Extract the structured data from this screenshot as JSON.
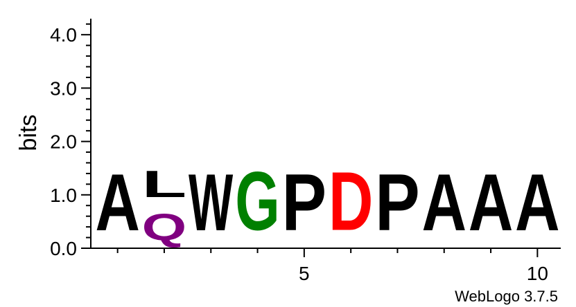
{
  "chart_data": {
    "type": "sequence-logo",
    "ylabel": "bits",
    "ylim": [
      0,
      4.3
    ],
    "y_ticks": [
      "0.0",
      "1.0",
      "2.0",
      "3.0",
      "4.0"
    ],
    "x_ticks": [
      "5",
      "10"
    ],
    "footer": "WebLogo 3.7.5",
    "colors": {
      "A": "#000000",
      "L": "#000000",
      "W": "#000000",
      "P": "#000000",
      "G": "#008000",
      "D": "#ff0000",
      "Q": "#800080"
    },
    "positions": [
      {
        "position": 1,
        "stack": [
          {
            "letter": "A",
            "bits": 1.7
          }
        ]
      },
      {
        "position": 2,
        "stack": [
          {
            "letter": "Q",
            "bits": 0.8
          },
          {
            "letter": "L",
            "bits": 0.8
          }
        ]
      },
      {
        "position": 3,
        "stack": [
          {
            "letter": "W",
            "bits": 1.7
          }
        ]
      },
      {
        "position": 4,
        "stack": [
          {
            "letter": "G",
            "bits": 1.75
          }
        ]
      },
      {
        "position": 5,
        "stack": [
          {
            "letter": "P",
            "bits": 1.7
          }
        ]
      },
      {
        "position": 6,
        "stack": [
          {
            "letter": "D",
            "bits": 1.75
          }
        ]
      },
      {
        "position": 7,
        "stack": [
          {
            "letter": "P",
            "bits": 1.7
          }
        ]
      },
      {
        "position": 8,
        "stack": [
          {
            "letter": "A",
            "bits": 1.7
          }
        ]
      },
      {
        "position": 9,
        "stack": [
          {
            "letter": "A",
            "bits": 1.7
          }
        ]
      },
      {
        "position": 10,
        "stack": [
          {
            "letter": "A",
            "bits": 1.7
          }
        ]
      }
    ]
  }
}
